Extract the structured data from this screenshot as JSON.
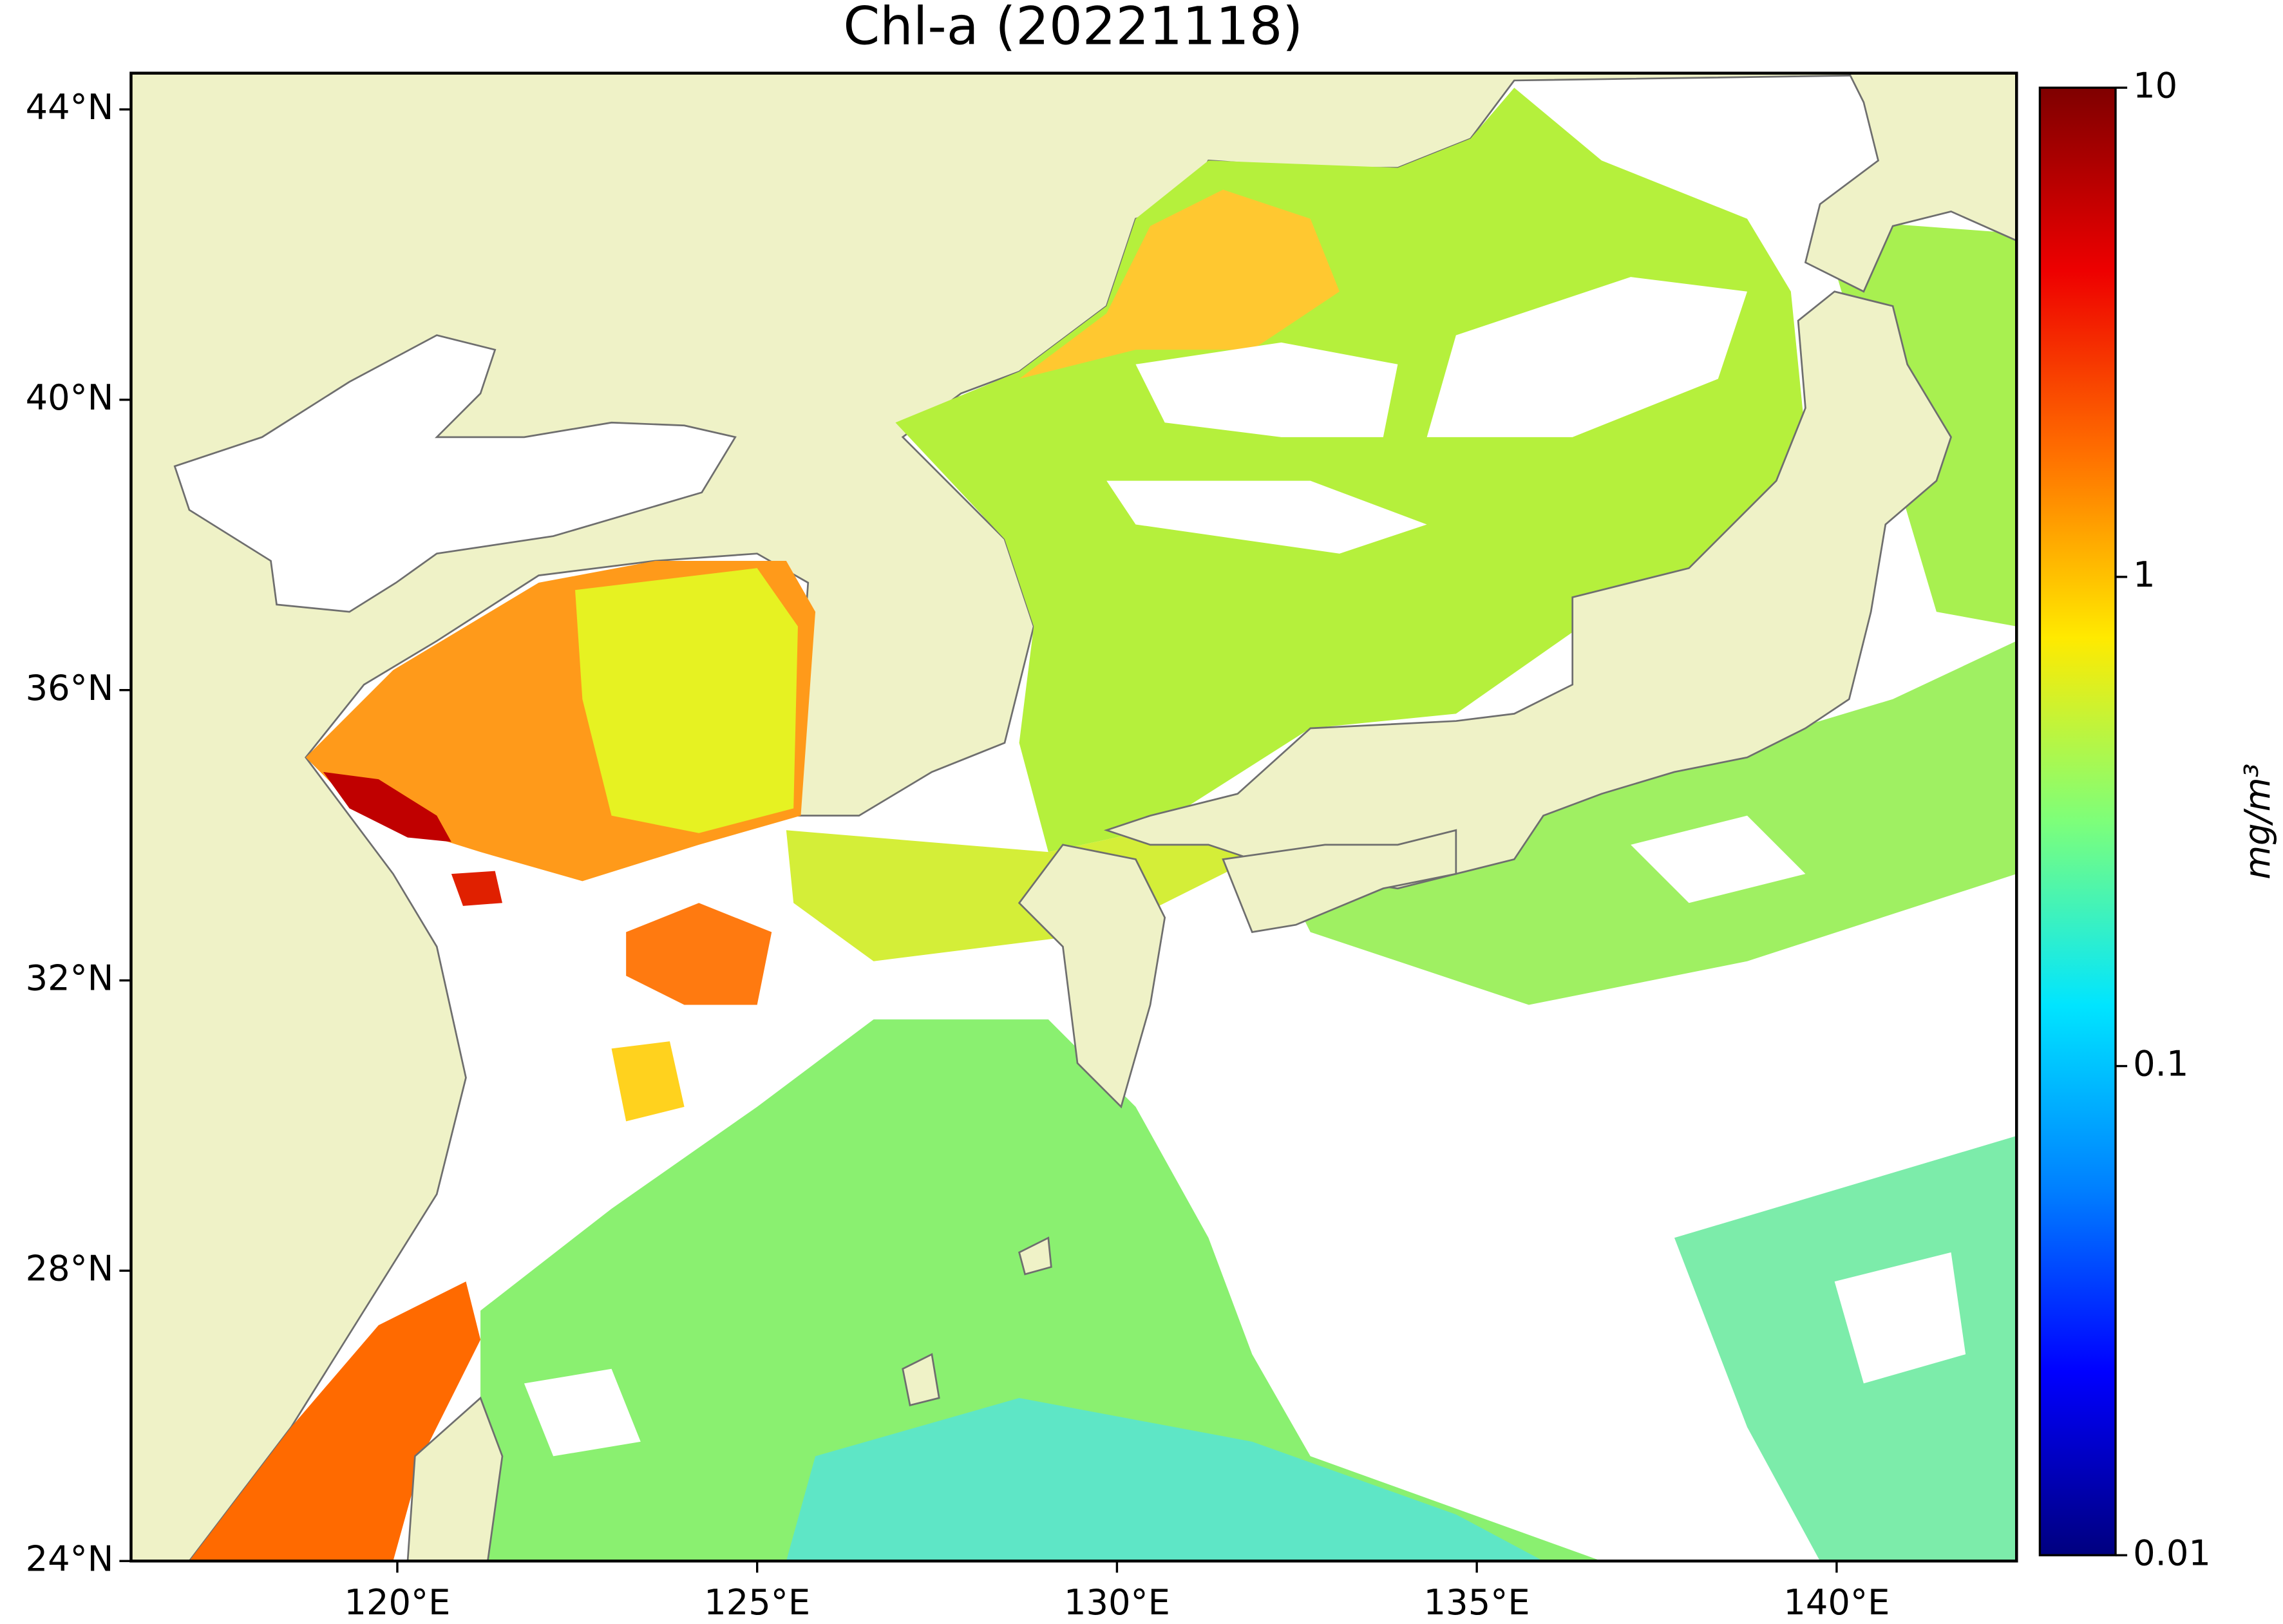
{
  "chart_data": {
    "type": "map",
    "title": "Chl-a (20221118)",
    "xlim": [
      116.3,
      142.5
    ],
    "ylim": [
      24,
      44.5
    ],
    "xticks": [
      {
        "value": 120,
        "label": "120°E"
      },
      {
        "value": 125,
        "label": "125°E"
      },
      {
        "value": 130,
        "label": "130°E"
      },
      {
        "value": 135,
        "label": "135°E"
      },
      {
        "value": 140,
        "label": "140°E"
      }
    ],
    "yticks": [
      {
        "value": 24,
        "label": "24°N"
      },
      {
        "value": 28,
        "label": "28°N"
      },
      {
        "value": 32,
        "label": "32°N"
      },
      {
        "value": 36,
        "label": "36°N"
      },
      {
        "value": 40,
        "label": "40°N"
      },
      {
        "value": 44,
        "label": "44°N"
      }
    ],
    "land_color": "#eff2c7",
    "colorbar": {
      "label": "mg/m³",
      "scale": "log",
      "lim": [
        0.01,
        10
      ],
      "ticks": [
        0.01,
        0.1,
        1,
        10
      ],
      "colormap": [
        "#00007f",
        "#0000ff",
        "#0080ff",
        "#00e5ff",
        "#7dff7a",
        "#ffea00",
        "#ff7000",
        "#ee0000",
        "#7f0000"
      ]
    }
  }
}
